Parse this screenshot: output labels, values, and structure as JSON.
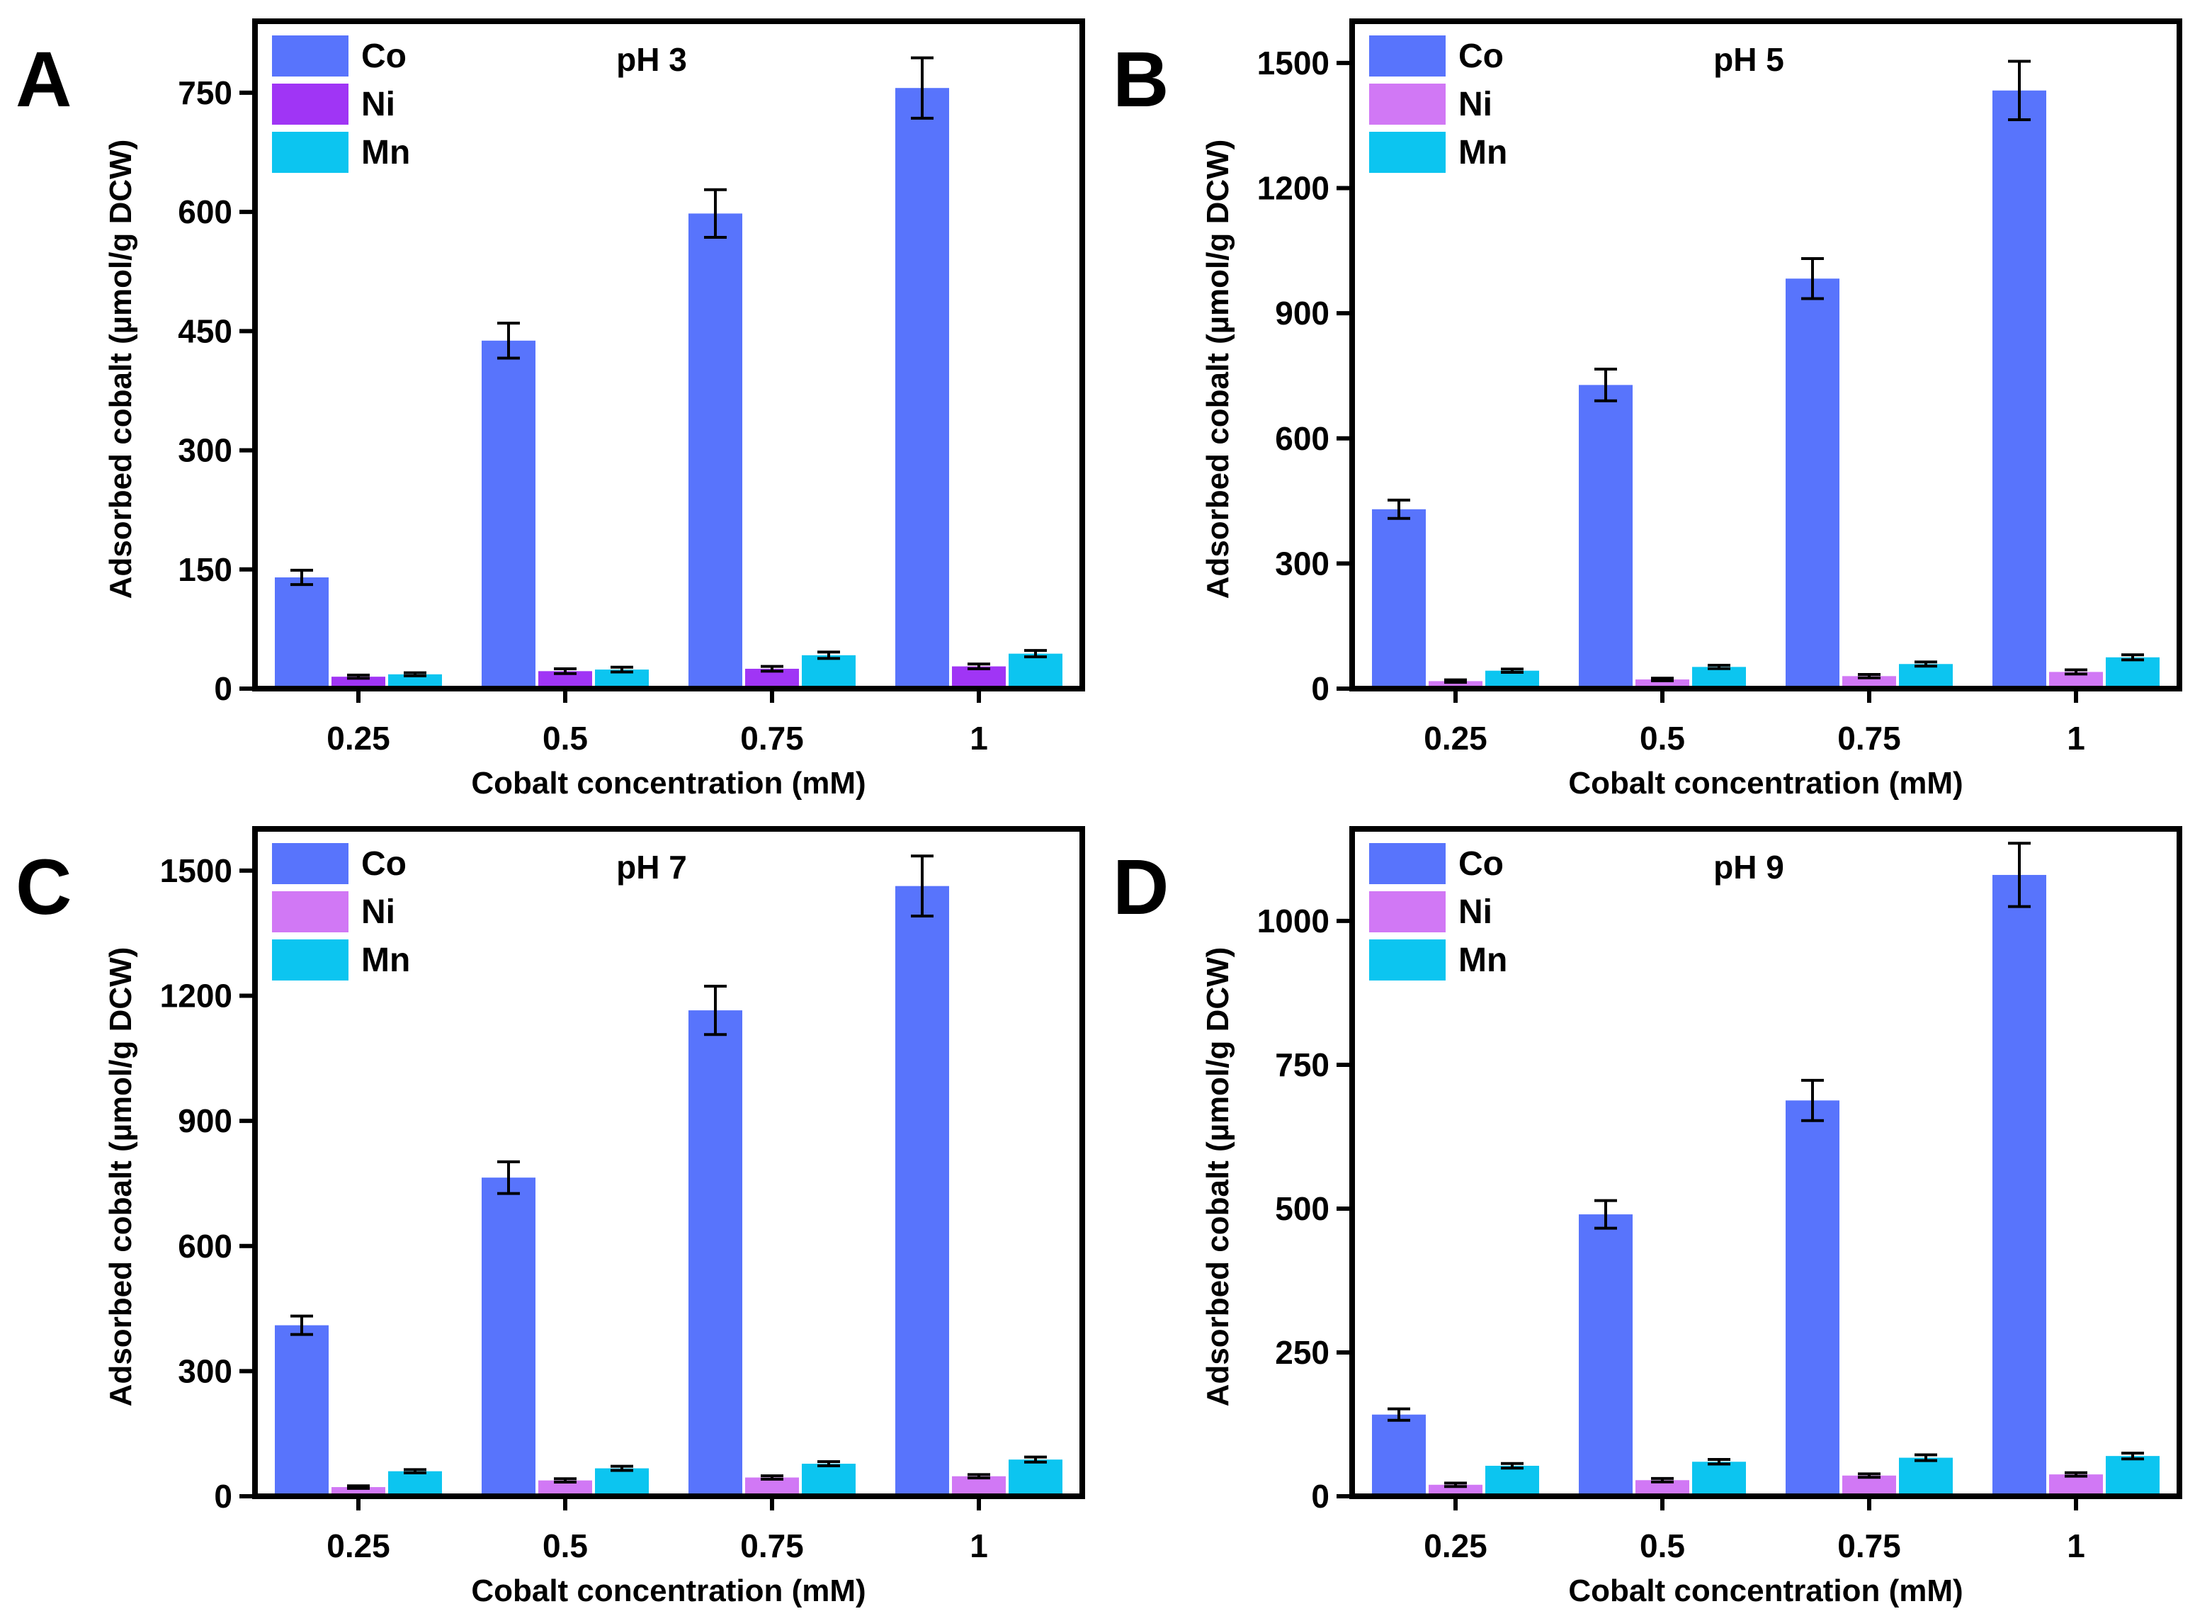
{
  "figure": {
    "panel_letters": [
      "A",
      "B",
      "C",
      "D"
    ]
  },
  "chart_data": [
    {
      "type": "bar",
      "panel": "A",
      "title": "pH 3",
      "xlabel": "Cobalt concentration (mM)",
      "ylabel": "Adsorbed cobalt (µmol/g DCW)",
      "categories": [
        "0.25",
        "0.5",
        "0.75",
        "1"
      ],
      "yticks": [
        0,
        150,
        300,
        450,
        600,
        750
      ],
      "ylim": [
        0,
        840
      ],
      "legend_position": "top-left",
      "series": [
        {
          "name": "Co",
          "color": "#5874FC",
          "values": [
            140,
            438,
            598,
            756
          ],
          "errors": [
            9,
            22,
            30,
            38
          ]
        },
        {
          "name": "Ni",
          "color": "#A035F5",
          "values": [
            15,
            22,
            25,
            28
          ],
          "errors": [
            2,
            3,
            3,
            3
          ]
        },
        {
          "name": "Mn",
          "color": "#0CC5F0",
          "values": [
            18,
            24,
            42,
            44
          ],
          "errors": [
            2,
            3,
            4,
            4
          ]
        }
      ]
    },
    {
      "type": "bar",
      "panel": "B",
      "title": "pH 5",
      "xlabel": "Cobalt concentration (mM)",
      "ylabel": "Adsorbed cobalt (µmol/g DCW)",
      "categories": [
        "0.25",
        "0.5",
        "0.75",
        "1"
      ],
      "yticks": [
        0,
        300,
        600,
        900,
        1200,
        1500
      ],
      "ylim": [
        0,
        1600
      ],
      "legend_position": "top-left",
      "series": [
        {
          "name": "Co",
          "color": "#5874FC",
          "values": [
            430,
            728,
            983,
            1434
          ],
          "errors": [
            22,
            38,
            48,
            70
          ]
        },
        {
          "name": "Ni",
          "color": "#D178F5",
          "values": [
            18,
            22,
            30,
            40
          ],
          "errors": [
            3,
            3,
            4,
            5
          ]
        },
        {
          "name": "Mn",
          "color": "#0CC5F0",
          "values": [
            43,
            52,
            59,
            75
          ],
          "errors": [
            4,
            4,
            5,
            6
          ]
        }
      ]
    },
    {
      "type": "bar",
      "panel": "C",
      "title": "pH 7",
      "xlabel": "Cobalt concentration (mM)",
      "ylabel": "Adsorbed cobalt (µmol/g DCW)",
      "categories": [
        "0.25",
        "0.5",
        "0.75",
        "1"
      ],
      "yticks": [
        0,
        300,
        600,
        900,
        1200,
        1500
      ],
      "ylim": [
        0,
        1600
      ],
      "legend_position": "top-left",
      "series": [
        {
          "name": "Co",
          "color": "#5874FC",
          "values": [
            410,
            764,
            1165,
            1463
          ],
          "errors": [
            22,
            38,
            58,
            72
          ]
        },
        {
          "name": "Ni",
          "color": "#D178F5",
          "values": [
            22,
            38,
            45,
            48
          ],
          "errors": [
            3,
            4,
            4,
            4
          ]
        },
        {
          "name": "Mn",
          "color": "#0CC5F0",
          "values": [
            60,
            67,
            78,
            88
          ],
          "errors": [
            4,
            5,
            5,
            6
          ]
        }
      ]
    },
    {
      "type": "bar",
      "panel": "D",
      "title": "pH 9",
      "xlabel": "Cobalt concentration (mM)",
      "ylabel": "Adsorbed cobalt (µmol/g DCW)",
      "categories": [
        "0.25",
        "0.5",
        "0.75",
        "1"
      ],
      "yticks": [
        0,
        250,
        500,
        750,
        1000
      ],
      "ylim": [
        0,
        1160
      ],
      "legend_position": "top-left",
      "series": [
        {
          "name": "Co",
          "color": "#5874FC",
          "values": [
            142,
            490,
            688,
            1080
          ],
          "errors": [
            10,
            24,
            35,
            55
          ]
        },
        {
          "name": "Ni",
          "color": "#D178F5",
          "values": [
            20,
            28,
            36,
            38
          ],
          "errors": [
            3,
            3,
            3,
            3
          ]
        },
        {
          "name": "Mn",
          "color": "#0CC5F0",
          "values": [
            53,
            60,
            67,
            70
          ],
          "errors": [
            4,
            4,
            5,
            5
          ]
        }
      ]
    }
  ]
}
